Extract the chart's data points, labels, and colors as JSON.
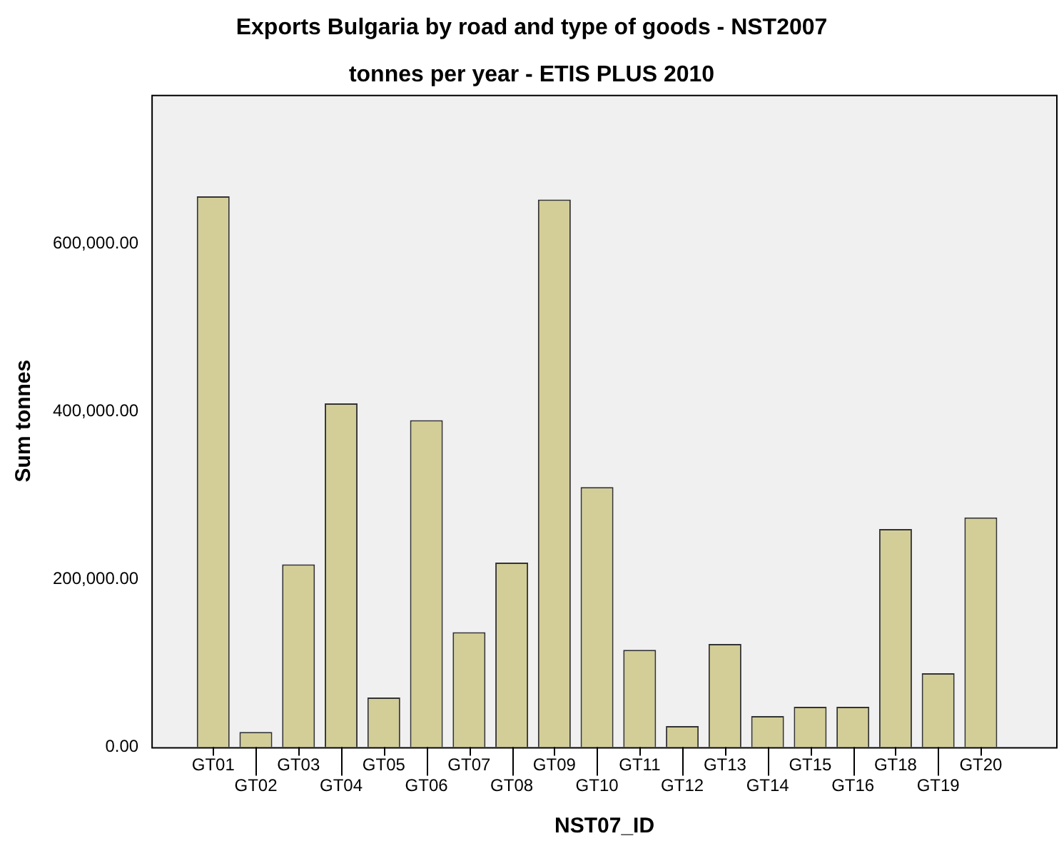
{
  "chart_data": {
    "type": "bar",
    "title": "Exports Bulgaria by road and type of goods - NST2007",
    "subtitle": "tonnes per year - ETIS PLUS 2010",
    "xlabel": "NST07_ID",
    "ylabel": "Sum tonnes",
    "categories": [
      "GT01",
      "GT02",
      "GT03",
      "GT04",
      "GT05",
      "GT06",
      "GT07",
      "GT08",
      "GT09",
      "GT10",
      "GT11",
      "GT12",
      "GT13",
      "GT14",
      "GT15",
      "GT16",
      "GT18",
      "GT19",
      "GT20"
    ],
    "values": [
      657000,
      18000,
      218000,
      410000,
      59000,
      390000,
      137000,
      220000,
      653000,
      310000,
      116000,
      25000,
      123000,
      37000,
      48000,
      48000,
      260000,
      88000,
      274000
    ],
    "color": "#d3ce97",
    "ylim": [
      0,
      778000
    ],
    "yticks": [
      {
        "value": 0,
        "label": "0.00"
      },
      {
        "value": 200000,
        "label": "200,000.00"
      },
      {
        "value": 400000,
        "label": "400,000.00"
      },
      {
        "value": 600000,
        "label": "600,000.00"
      }
    ],
    "grid": false,
    "legend": false
  }
}
